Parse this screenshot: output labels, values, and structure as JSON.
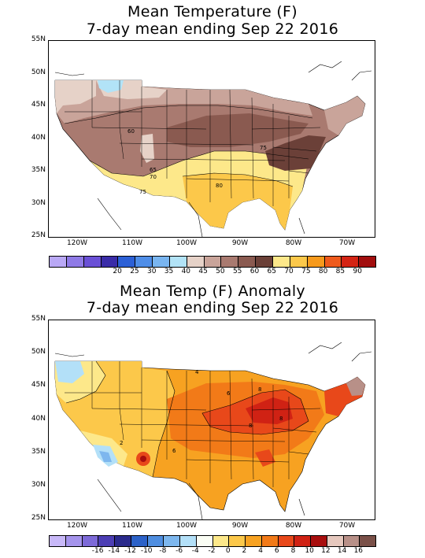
{
  "map1": {
    "title_line1": "Mean Temperature (F)",
    "title_line2": "7-day mean ending Sep 22 2016",
    "lat_labels": [
      "55N",
      "50N",
      "45N",
      "40N",
      "35N",
      "30N",
      "25N"
    ],
    "lon_labels": [
      "120W",
      "110W",
      "100W",
      "90W",
      "80W",
      "70W"
    ],
    "contour_labels": [
      "60",
      "65",
      "70",
      "75",
      "75",
      "80"
    ],
    "colorbar": {
      "colors": [
        "#b9a8f5",
        "#8f7ae6",
        "#6a50d6",
        "#3a2ca8",
        "#2c60d6",
        "#4f8ee8",
        "#79b5f0",
        "#b2e3f7",
        "#e6d2c8",
        "#c9a49a",
        "#a97a70",
        "#8a5a50",
        "#6b4038",
        "#fde88a",
        "#fcc84a",
        "#f79a1c",
        "#ee5a1c",
        "#d42414",
        "#a20e0e"
      ],
      "labels": [
        "20",
        "25",
        "30",
        "35",
        "40",
        "45",
        "50",
        "55",
        "60",
        "65",
        "70",
        "75",
        "80",
        "85",
        "90"
      ]
    }
  },
  "map2": {
    "title_line1": "Mean Temp (F) Anomaly",
    "title_line2": "7-day mean ending Sep 22 2016",
    "lat_labels": [
      "55N",
      "50N",
      "45N",
      "40N",
      "35N",
      "30N",
      "25N"
    ],
    "lon_labels": [
      "120W",
      "110W",
      "100W",
      "90W",
      "80W",
      "70W"
    ],
    "contour_labels": [
      "4",
      "6",
      "8",
      "8",
      "8",
      "6",
      "2"
    ],
    "colorbar": {
      "colors": [
        "#c8b8f8",
        "#a594ec",
        "#7d6ad8",
        "#4c3eb4",
        "#2a2a8c",
        "#2c62c8",
        "#4f8ee0",
        "#7db7ee",
        "#b3e0f8",
        "#fafdf4",
        "#fde88a",
        "#fcc84a",
        "#f7a221",
        "#f27a18",
        "#e8481a",
        "#d02214",
        "#a80e0e",
        "#e6c8be",
        "#b89088",
        "#7a5048"
      ],
      "labels": [
        "-16",
        "-14",
        "-12",
        "-10",
        "-8",
        "-6",
        "-4",
        "-2",
        "0",
        "2",
        "4",
        "6",
        "8",
        "10",
        "12",
        "14",
        "16"
      ]
    }
  }
}
